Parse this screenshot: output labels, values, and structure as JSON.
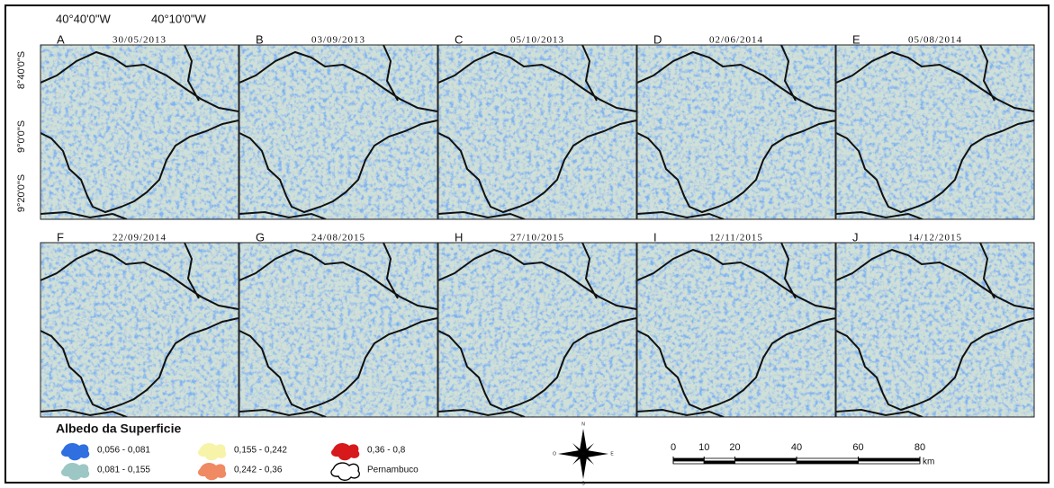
{
  "coordinates": {
    "top": [
      "40°40'0\"W",
      "40°10'0\"W"
    ],
    "left": [
      "8°40'0\"S",
      "9°0'0\"S",
      "9°20'0\"S"
    ]
  },
  "panels": [
    {
      "letter": "A",
      "date": "30/05/2013"
    },
    {
      "letter": "B",
      "date": "03/09/2013"
    },
    {
      "letter": "C",
      "date": "05/10/2013"
    },
    {
      "letter": "D",
      "date": "02/06/2014"
    },
    {
      "letter": "E",
      "date": "05/08/2014"
    },
    {
      "letter": "F",
      "date": "22/09/2014"
    },
    {
      "letter": "G",
      "date": "24/08/2015"
    },
    {
      "letter": "H",
      "date": "27/10/2015"
    },
    {
      "letter": "I",
      "date": "12/11/2015"
    },
    {
      "letter": "J",
      "date": "14/12/2015"
    }
  ],
  "legend": {
    "title": "Albedo da Superficie",
    "items": [
      {
        "label": "0,056 - 0,081",
        "color": "#2f6fe0"
      },
      {
        "label": "0,081 - 0,155",
        "color": "#9cc7c4"
      },
      {
        "label": "0,155 - 0,242",
        "color": "#f7f3a8"
      },
      {
        "label": "0,242 - 0,36",
        "color": "#ef8a62"
      },
      {
        "label": "0,36 - 0,8",
        "color": "#d7191c"
      },
      {
        "label": "Pernambuco"
      }
    ]
  },
  "compass": [
    "N",
    "E",
    "S",
    "O"
  ],
  "scale_bar": {
    "ticks": [
      0,
      10,
      20,
      40,
      60,
      80
    ],
    "unit": "km"
  }
}
